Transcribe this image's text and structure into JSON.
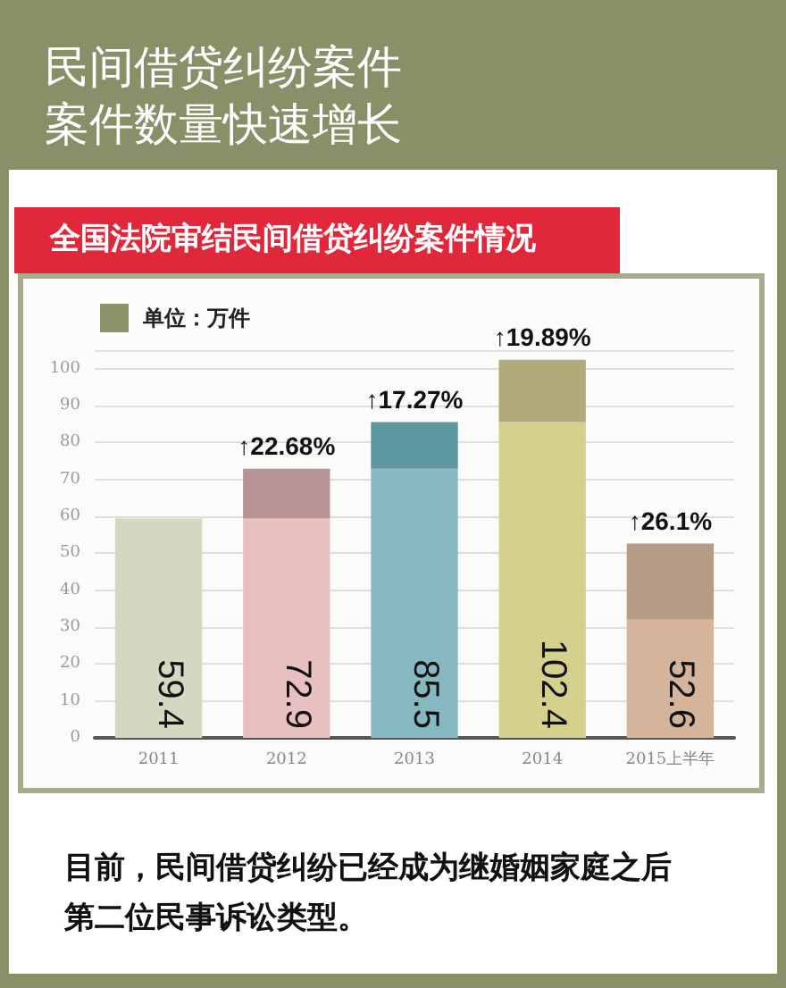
{
  "chart_data": {
    "type": "bar",
    "title": "民间借贷纠纷案件案件数量快速增长",
    "subtitle": "全国法院审结民间借贷纠纷案件情况",
    "categories": [
      "2011",
      "2012",
      "2013",
      "2014",
      "2015上半年"
    ],
    "stacked": true,
    "series": [
      {
        "colors": [
          "#d3d8c0",
          "#e9c0c0",
          "#85b8c0",
          "#d6d08f",
          "#d4b59c"
        ],
        "values": [
          59.4,
          59.4,
          72.9,
          85.5,
          32
        ]
      },
      {
        "colors": [
          "#d3d8c0",
          "#b89393",
          "#5f97a0",
          "#b1ab7a",
          "#b59c85"
        ],
        "values": [
          null,
          13.5,
          12.6,
          16.9,
          20.6
        ]
      }
    ],
    "totals": [
      "59.4",
      "72.9",
      "85.5",
      "102.4",
      "52.6"
    ],
    "ylim": [
      0,
      105
    ],
    "yticks": [
      0,
      10,
      20,
      30,
      40,
      50,
      60,
      70,
      80,
      90,
      100,
      {
        "value": 105,
        "label": null
      }
    ],
    "grid": "y",
    "annotations": [
      {
        "text": "↑22.68%",
        "x": "2012",
        "y": 72.9
      },
      {
        "text": "↑17.27%",
        "x": "2013",
        "y": 85.5
      },
      {
        "text": "↑19.89%",
        "x": "2014",
        "y": 102.4
      },
      {
        "text": "↑26.1%",
        "x": "2015上半年",
        "y": 52.6
      },
      "单位：万件",
      "目前，民间借贷纠纷已经成为继婚姻家庭之后第二位民事诉讼类型。"
    ]
  }
}
